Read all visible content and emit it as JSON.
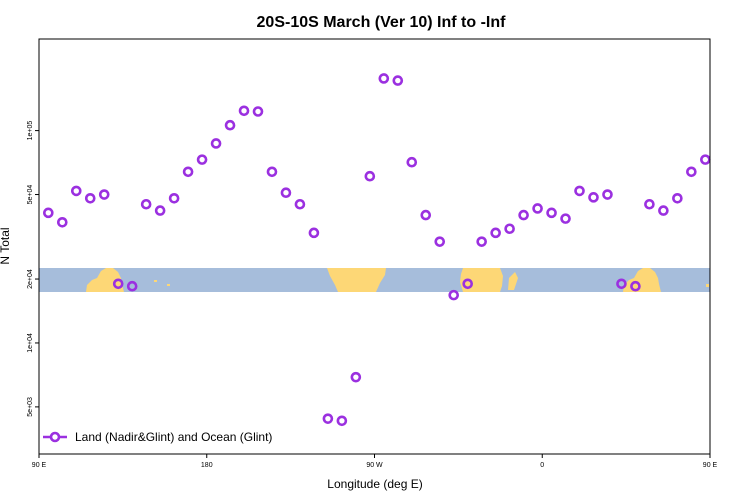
{
  "chart_data": {
    "type": "scatter",
    "title": "20S-10S March (Ver 10)   Inf to -Inf",
    "xlabel": "Longitude (deg E)",
    "ylabel": "N Total",
    "y_scale": "log",
    "xlim": [
      90,
      450
    ],
    "ylim": [
      3000,
      270000
    ],
    "x_ticks": [
      {
        "value": 90,
        "label": "90 E"
      },
      {
        "value": 180,
        "label": "180"
      },
      {
        "value": 270,
        "label": "90 W"
      },
      {
        "value": 360,
        "label": "0"
      },
      {
        "value": 450,
        "label": "90 E"
      }
    ],
    "y_ticks": [
      {
        "value": 5000,
        "label": "5e+03"
      },
      {
        "value": 10000,
        "label": "1e+04"
      },
      {
        "value": 20000,
        "label": "2e+04"
      },
      {
        "value": 50000,
        "label": "5e+04"
      },
      {
        "value": 100000,
        "label": "1e+05"
      }
    ],
    "grid": false,
    "legend": {
      "placement": "bottom-left",
      "entries": [
        "Land (Nadir&Glint) and Ocean (Glint)"
      ]
    },
    "map_strip": {
      "latitude_range": [
        "20S",
        "10S"
      ],
      "ocean_color": "#a6bddb",
      "land_color": "#fdd776"
    },
    "series": [
      {
        "name": "Land (Nadir&Glint) and Ocean (Glint)",
        "color": "#9b30e0",
        "marker": "open-circle",
        "x": [
          95,
          102.5,
          110,
          117.5,
          125,
          132.5,
          140,
          147.5,
          155,
          162.5,
          170,
          177.5,
          185,
          192.5,
          200,
          207.5,
          215,
          222.5,
          230,
          237.5,
          245,
          252.5,
          260,
          267.5,
          275,
          282.5,
          290,
          297.5,
          305,
          312.5,
          320,
          327.5,
          335,
          342.5,
          350,
          357.5,
          365,
          372.5,
          380,
          387.5,
          395,
          402.5,
          410,
          417.5,
          425,
          432.5,
          440,
          447.5
        ],
        "y": [
          41000,
          37000,
          52000,
          48000,
          50000,
          19000,
          18500,
          45000,
          42000,
          48000,
          64000,
          73000,
          87000,
          106000,
          124000,
          123000,
          64000,
          51000,
          45000,
          33000,
          4400,
          4300,
          6900,
          61000,
          176000,
          172000,
          71000,
          40000,
          30000,
          16800,
          19000,
          30000,
          33000,
          34500,
          40000,
          43000,
          41000,
          38500,
          52000,
          48500,
          50000,
          19000,
          18500,
          45000,
          42000,
          48000,
          64000,
          73000
        ]
      }
    ]
  }
}
